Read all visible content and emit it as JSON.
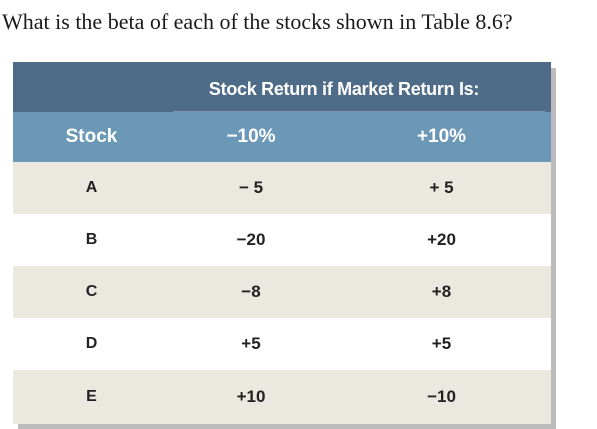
{
  "question": "What is the beta of each of the stocks shown in Table 8.6?",
  "table": {
    "spanning_header": "Stock Return if Market Return Is:",
    "columns": [
      "Stock",
      "−10%",
      "+10%"
    ],
    "rows": [
      {
        "stock": "A",
        "down": "− 5",
        "up": "+ 5"
      },
      {
        "stock": "B",
        "down": "−20",
        "up": "+20"
      },
      {
        "stock": "C",
        "down": "−8",
        "up": "+8"
      },
      {
        "stock": "D",
        "down": "+5",
        "up": "+5"
      },
      {
        "stock": "E",
        "down": "+10",
        "up": "−10"
      }
    ]
  },
  "colors": {
    "header_dark": "#4e6c88",
    "header_light": "#6b98b6",
    "row_shaded": "#eae8df",
    "row_plain": "#ffffff"
  }
}
